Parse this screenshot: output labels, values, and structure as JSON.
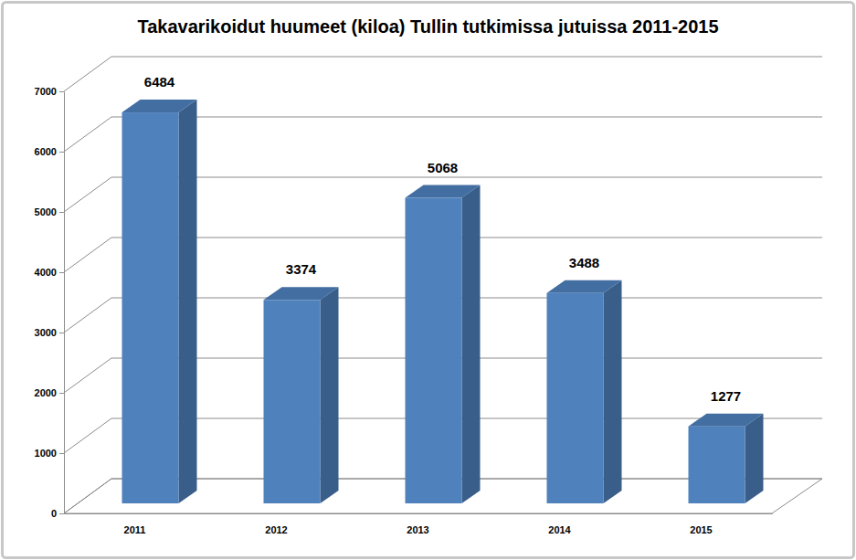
{
  "chart_data": {
    "type": "bar",
    "title": "Takavarikoidut huumeet (kiloa) Tullin tutkimissa jutuissa 2011-2015",
    "categories": [
      "2011",
      "2012",
      "2013",
      "2014",
      "2015"
    ],
    "values": [
      6484,
      3374,
      5068,
      3488,
      1277
    ],
    "color": "#4f81bd",
    "ylim": [
      0,
      7000
    ],
    "yticks": [
      0,
      1000,
      2000,
      3000,
      4000,
      5000,
      6000,
      7000
    ],
    "grid": true,
    "data_labels": true
  }
}
